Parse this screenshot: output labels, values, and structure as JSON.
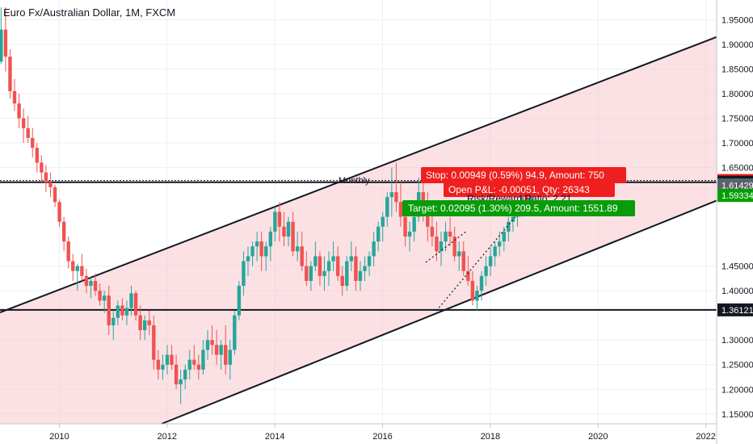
{
  "chart_data": {
    "type": "candlestick",
    "title": "Euro Fx/Australian Dollar, 1M, FXCM",
    "x_ticks": [
      "2010",
      "2012",
      "2014",
      "2016",
      "2018",
      "2020",
      "2022"
    ],
    "y_ticks": [
      "1.95000",
      "1.90000",
      "1.85000",
      "1.80000",
      "1.75000",
      "1.70000",
      "1.65000",
      "1.45000",
      "1.40000",
      "1.30000",
      "1.25000",
      "1.20000",
      "1.15000"
    ],
    "ylim": [
      1.13,
      1.99
    ],
    "xlim": [
      2008.9,
      2022.2
    ],
    "price_badges": [
      {
        "label": "1.62378",
        "value": 1.62378,
        "color": "#ef1f1f"
      },
      {
        "label": "1.62020",
        "value": 1.6202,
        "color": "#131722"
      },
      {
        "label": "1.61480",
        "value": 1.6148,
        "color": "#089981"
      },
      {
        "label": "1.61429",
        "value": 1.61429,
        "color": "#5d606b"
      },
      {
        "label": "1.59334",
        "value": 1.59334,
        "color": "#00a000"
      },
      {
        "label": "1.36121",
        "value": 1.36121,
        "color": "#131722"
      }
    ],
    "horizontal_lines": [
      1.36121,
      1.6202
    ],
    "channel": {
      "upper": [
        [
          2008.9,
          1.356
        ],
        [
          2022.2,
          1.915
        ]
      ],
      "lower": [
        [
          2011.9,
          1.13
        ],
        [
          2022.2,
          1.583
        ]
      ]
    },
    "annotation": "Monthly",
    "position_tool": {
      "stop": "Stop: 0.00949 (0.59%) 94.9, Amount: 750",
      "pnl": "Open P&L: -0.00051, Qty: 26343",
      "ratio": "Risk/Reward Ratio: 2.21",
      "target": "Target: 0.02095 (1.30%) 209.5, Amount: 1551.89",
      "stop_color": "#ef1f1f",
      "target_color": "#089c08"
    },
    "ohlc": [
      [
        1.865,
        1.975,
        1.86,
        1.93
      ],
      [
        1.93,
        1.975,
        1.845,
        1.875
      ],
      [
        1.875,
        1.89,
        1.79,
        1.805
      ],
      [
        1.805,
        1.83,
        1.765,
        1.78
      ],
      [
        1.78,
        1.8,
        1.73,
        1.75
      ],
      [
        1.75,
        1.77,
        1.7,
        1.73
      ],
      [
        1.73,
        1.755,
        1.7,
        1.71
      ],
      [
        1.71,
        1.73,
        1.67,
        1.69
      ],
      [
        1.69,
        1.7,
        1.64,
        1.66
      ],
      [
        1.66,
        1.675,
        1.62,
        1.64
      ],
      [
        1.64,
        1.655,
        1.6,
        1.62
      ],
      [
        1.62,
        1.64,
        1.59,
        1.61
      ],
      [
        1.61,
        1.615,
        1.57,
        1.58
      ],
      [
        1.58,
        1.585,
        1.53,
        1.54
      ],
      [
        1.54,
        1.55,
        1.48,
        1.5
      ],
      [
        1.5,
        1.51,
        1.445,
        1.46
      ],
      [
        1.46,
        1.475,
        1.42,
        1.44
      ],
      [
        1.44,
        1.455,
        1.4,
        1.45
      ],
      [
        1.45,
        1.475,
        1.42,
        1.43
      ],
      [
        1.43,
        1.445,
        1.395,
        1.41
      ],
      [
        1.41,
        1.43,
        1.385,
        1.42
      ],
      [
        1.42,
        1.435,
        1.39,
        1.4
      ],
      [
        1.4,
        1.415,
        1.37,
        1.38
      ],
      [
        1.38,
        1.4,
        1.355,
        1.39
      ],
      [
        1.39,
        1.41,
        1.31,
        1.33
      ],
      [
        1.33,
        1.36,
        1.3,
        1.345
      ],
      [
        1.345,
        1.38,
        1.33,
        1.37
      ],
      [
        1.37,
        1.385,
        1.34,
        1.35
      ],
      [
        1.35,
        1.38,
        1.33,
        1.365
      ],
      [
        1.365,
        1.41,
        1.35,
        1.395
      ],
      [
        1.395,
        1.4,
        1.34,
        1.35
      ],
      [
        1.35,
        1.37,
        1.3,
        1.32
      ],
      [
        1.32,
        1.35,
        1.3,
        1.34
      ],
      [
        1.34,
        1.36,
        1.31,
        1.33
      ],
      [
        1.33,
        1.35,
        1.24,
        1.26
      ],
      [
        1.26,
        1.28,
        1.22,
        1.24
      ],
      [
        1.24,
        1.27,
        1.22,
        1.25
      ],
      [
        1.25,
        1.29,
        1.23,
        1.27
      ],
      [
        1.27,
        1.29,
        1.24,
        1.25
      ],
      [
        1.25,
        1.27,
        1.2,
        1.21
      ],
      [
        1.21,
        1.24,
        1.17,
        1.22
      ],
      [
        1.22,
        1.25,
        1.2,
        1.24
      ],
      [
        1.24,
        1.28,
        1.22,
        1.26
      ],
      [
        1.26,
        1.29,
        1.24,
        1.25
      ],
      [
        1.25,
        1.27,
        1.22,
        1.24
      ],
      [
        1.24,
        1.3,
        1.23,
        1.28
      ],
      [
        1.28,
        1.32,
        1.26,
        1.3
      ],
      [
        1.3,
        1.33,
        1.27,
        1.29
      ],
      [
        1.29,
        1.32,
        1.25,
        1.27
      ],
      [
        1.27,
        1.3,
        1.24,
        1.29
      ],
      [
        1.29,
        1.33,
        1.23,
        1.25
      ],
      [
        1.25,
        1.3,
        1.22,
        1.28
      ],
      [
        1.28,
        1.36,
        1.27,
        1.35
      ],
      [
        1.35,
        1.42,
        1.34,
        1.41
      ],
      [
        1.41,
        1.48,
        1.39,
        1.46
      ],
      [
        1.46,
        1.49,
        1.43,
        1.47
      ],
      [
        1.47,
        1.5,
        1.45,
        1.49
      ],
      [
        1.49,
        1.52,
        1.46,
        1.5
      ],
      [
        1.5,
        1.52,
        1.44,
        1.47
      ],
      [
        1.47,
        1.5,
        1.44,
        1.49
      ],
      [
        1.49,
        1.53,
        1.46,
        1.52
      ],
      [
        1.52,
        1.57,
        1.5,
        1.56
      ],
      [
        1.56,
        1.58,
        1.5,
        1.53
      ],
      [
        1.53,
        1.56,
        1.49,
        1.51
      ],
      [
        1.51,
        1.55,
        1.49,
        1.54
      ],
      [
        1.54,
        1.56,
        1.47,
        1.48
      ],
      [
        1.48,
        1.52,
        1.46,
        1.49
      ],
      [
        1.49,
        1.52,
        1.44,
        1.45
      ],
      [
        1.45,
        1.48,
        1.41,
        1.42
      ],
      [
        1.42,
        1.46,
        1.4,
        1.45
      ],
      [
        1.45,
        1.5,
        1.44,
        1.47
      ],
      [
        1.47,
        1.48,
        1.41,
        1.43
      ],
      [
        1.43,
        1.47,
        1.4,
        1.44
      ],
      [
        1.44,
        1.48,
        1.41,
        1.46
      ],
      [
        1.46,
        1.5,
        1.44,
        1.47
      ],
      [
        1.47,
        1.49,
        1.42,
        1.43
      ],
      [
        1.43,
        1.45,
        1.39,
        1.41
      ],
      [
        1.41,
        1.47,
        1.4,
        1.46
      ],
      [
        1.46,
        1.5,
        1.44,
        1.47
      ],
      [
        1.47,
        1.49,
        1.4,
        1.42
      ],
      [
        1.42,
        1.46,
        1.4,
        1.44
      ],
      [
        1.44,
        1.47,
        1.42,
        1.45
      ],
      [
        1.45,
        1.48,
        1.43,
        1.47
      ],
      [
        1.47,
        1.52,
        1.45,
        1.5
      ],
      [
        1.5,
        1.54,
        1.48,
        1.53
      ],
      [
        1.53,
        1.56,
        1.5,
        1.55
      ],
      [
        1.55,
        1.6,
        1.53,
        1.59
      ],
      [
        1.59,
        1.65,
        1.55,
        1.6
      ],
      [
        1.6,
        1.66,
        1.56,
        1.58
      ],
      [
        1.58,
        1.62,
        1.53,
        1.55
      ],
      [
        1.55,
        1.58,
        1.49,
        1.51
      ],
      [
        1.51,
        1.54,
        1.48,
        1.52
      ],
      [
        1.52,
        1.56,
        1.5,
        1.55
      ],
      [
        1.55,
        1.63,
        1.54,
        1.6
      ],
      [
        1.6,
        1.64,
        1.54,
        1.56
      ],
      [
        1.56,
        1.6,
        1.5,
        1.53
      ],
      [
        1.53,
        1.56,
        1.49,
        1.51
      ],
      [
        1.51,
        1.54,
        1.46,
        1.48
      ],
      [
        1.48,
        1.52,
        1.45,
        1.5
      ],
      [
        1.5,
        1.54,
        1.48,
        1.52
      ],
      [
        1.52,
        1.55,
        1.49,
        1.51
      ],
      [
        1.51,
        1.53,
        1.46,
        1.47
      ],
      [
        1.47,
        1.5,
        1.44,
        1.48
      ],
      [
        1.48,
        1.5,
        1.43,
        1.44
      ],
      [
        1.44,
        1.47,
        1.41,
        1.42
      ],
      [
        1.42,
        1.44,
        1.37,
        1.38
      ],
      [
        1.38,
        1.41,
        1.36,
        1.4
      ],
      [
        1.4,
        1.44,
        1.38,
        1.43
      ],
      [
        1.43,
        1.47,
        1.41,
        1.45
      ],
      [
        1.45,
        1.49,
        1.43,
        1.47
      ],
      [
        1.47,
        1.5,
        1.45,
        1.49
      ],
      [
        1.49,
        1.52,
        1.47,
        1.5
      ],
      [
        1.5,
        1.53,
        1.48,
        1.52
      ],
      [
        1.52,
        1.55,
        1.5,
        1.54
      ],
      [
        1.54,
        1.57,
        1.52,
        1.55
      ],
      [
        1.55,
        1.59,
        1.53,
        1.57
      ],
      [
        1.57,
        1.6,
        1.55,
        1.59
      ],
      [
        1.59,
        1.61,
        1.56,
        1.58
      ],
      [
        1.58,
        1.62,
        1.57,
        1.61
      ],
      [
        1.61,
        1.63,
        1.59,
        1.6
      ],
      [
        1.6,
        1.63,
        1.59,
        1.62
      ],
      [
        1.62,
        1.63,
        1.6,
        1.61
      ],
      [
        1.61,
        1.63,
        1.6,
        1.614
      ]
    ]
  }
}
